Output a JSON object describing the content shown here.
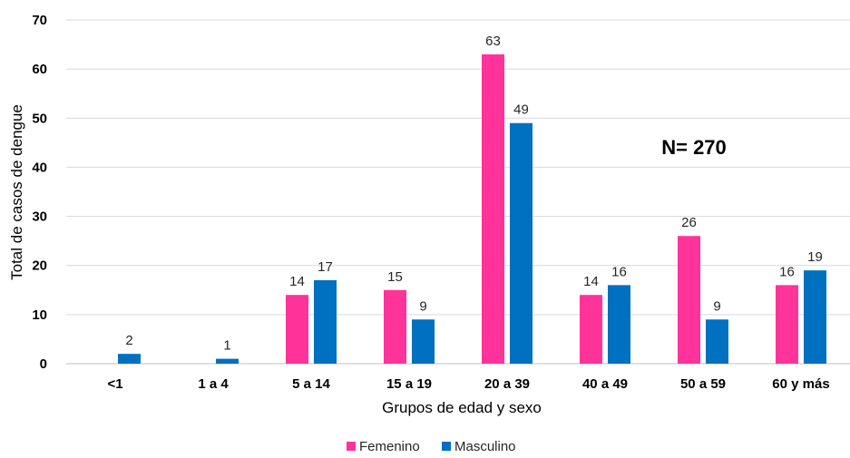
{
  "chart_data": {
    "type": "bar",
    "title": "",
    "xlabel": "Grupos de edad y sexo",
    "ylabel": "Total de casos de dengue",
    "ylim": [
      0,
      70
    ],
    "yticks": [
      "0",
      "10",
      "20",
      "30",
      "40",
      "50",
      "60",
      "70"
    ],
    "grid": true,
    "legend_position": "bottom",
    "categories": [
      "<1",
      "1 a 4",
      "5 a 14",
      "15 a 19",
      "20 a 39",
      "40 a 49",
      "50 a 59",
      "60 y más"
    ],
    "series": [
      {
        "name": "Femenino",
        "color": "#ff3399",
        "values": [
          null,
          null,
          14,
          15,
          63,
          14,
          26,
          16
        ]
      },
      {
        "name": "Masculino",
        "color": "#0070c0",
        "values": [
          2,
          1,
          17,
          9,
          49,
          16,
          9,
          19
        ]
      }
    ],
    "annotation": "N= 270"
  }
}
